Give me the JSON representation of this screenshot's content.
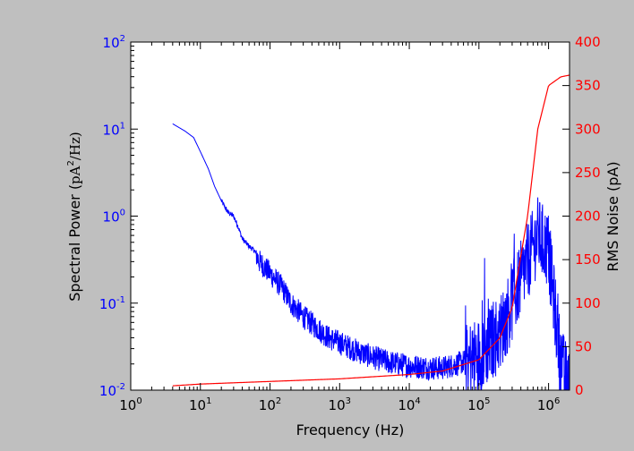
{
  "chart_data": {
    "type": "line",
    "xlabel": "Frequency (Hz)",
    "ylabel_left_prefix": "Spectral Power (",
    "ylabel_left_unit": "pA",
    "ylabel_left_exp": "2",
    "ylabel_left_suffix": "/Hz)",
    "ylabel_right": "RMS Noise (pA)",
    "x_scale": "log",
    "xlim": [
      1,
      2000000
    ],
    "y_left_scale": "log",
    "y_left_lim": [
      0.01,
      100
    ],
    "y_right_scale": "linear",
    "y_right_lim": [
      0,
      400
    ],
    "grid": false,
    "x_ticks": [
      {
        "value": 1,
        "base": "10",
        "exp": "0"
      },
      {
        "value": 10,
        "base": "10",
        "exp": "1"
      },
      {
        "value": 100,
        "base": "10",
        "exp": "2"
      },
      {
        "value": 1000,
        "base": "10",
        "exp": "3"
      },
      {
        "value": 10000,
        "base": "10",
        "exp": "4"
      },
      {
        "value": 100000,
        "base": "10",
        "exp": "5"
      },
      {
        "value": 1000000,
        "base": "10",
        "exp": "6"
      }
    ],
    "y_left_ticks": [
      {
        "value": 0.01,
        "base": "10",
        "exp": "-2"
      },
      {
        "value": 0.1,
        "base": "10",
        "exp": "-1"
      },
      {
        "value": 1,
        "base": "10",
        "exp": "0"
      },
      {
        "value": 10,
        "base": "10",
        "exp": "1"
      },
      {
        "value": 100,
        "base": "10",
        "exp": "2"
      }
    ],
    "y_right_ticks": [
      "0",
      "50",
      "100",
      "150",
      "200",
      "250",
      "300",
      "350",
      "400"
    ],
    "series": [
      {
        "axis": "left",
        "color": "#0000ff",
        "noisy": true,
        "x": [
          4,
          6,
          8,
          10,
          13,
          16,
          20,
          25,
          30,
          35,
          40,
          50,
          60,
          70,
          80,
          100,
          150,
          200,
          300,
          500,
          700,
          1000,
          2000,
          3000,
          5000,
          10000,
          20000,
          30000,
          50000,
          100000,
          200000,
          300000,
          500000,
          700000,
          1000000,
          1200000,
          1500000,
          2000000
        ],
        "y": [
          11.5,
          9.5,
          8.0,
          5.5,
          3.5,
          2.2,
          1.5,
          1.1,
          1.0,
          0.75,
          0.55,
          0.45,
          0.4,
          0.3,
          0.27,
          0.22,
          0.15,
          0.1,
          0.07,
          0.05,
          0.04,
          0.035,
          0.027,
          0.024,
          0.021,
          0.019,
          0.018,
          0.018,
          0.02,
          0.025,
          0.045,
          0.1,
          0.3,
          0.6,
          0.4,
          0.1,
          0.02,
          0.01
        ]
      },
      {
        "axis": "right",
        "color": "#ff0000",
        "noisy": false,
        "x": [
          4,
          10,
          100,
          1000,
          10000,
          30000,
          100000,
          200000,
          300000,
          500000,
          700000,
          1000000,
          1500000,
          2000000
        ],
        "y": [
          5,
          7,
          10,
          13,
          18,
          22,
          35,
          60,
          95,
          200,
          300,
          350,
          360,
          362
        ]
      }
    ]
  }
}
